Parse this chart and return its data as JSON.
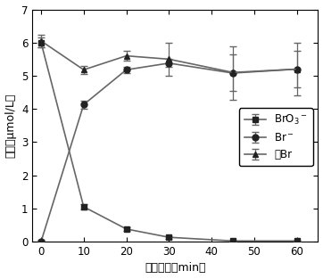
{
  "x": [
    0,
    10,
    20,
    30,
    45,
    60
  ],
  "BrO3_y": [
    6.0,
    1.05,
    0.38,
    0.13,
    0.02,
    0.02
  ],
  "BrO3_yerr": [
    0.15,
    0.08,
    0.06,
    0.04,
    0.02,
    0.02
  ],
  "Br_y": [
    0.0,
    4.13,
    5.18,
    5.38,
    5.08,
    5.2
  ],
  "Br_yerr": [
    0.05,
    0.12,
    0.1,
    0.12,
    0.8,
    0.8
  ],
  "TotalBr_y": [
    6.05,
    5.18,
    5.6,
    5.5,
    5.1,
    5.2
  ],
  "TotalBr_yerr": [
    0.18,
    0.12,
    0.15,
    0.5,
    0.55,
    0.55
  ],
  "xlabel": "反应时间（min）",
  "ylabel": "浓度（μmol/L）",
  "xlim": [
    -2,
    65
  ],
  "ylim": [
    0,
    7
  ],
  "yticks": [
    0,
    1,
    2,
    3,
    4,
    5,
    6,
    7
  ],
  "xticks": [
    0,
    10,
    20,
    30,
    40,
    50,
    60
  ],
  "legend_BrO3": "BrO$_3$$^-$",
  "legend_Br": "Br$^-$",
  "legend_TotalBr": "总Br",
  "line_color": "#666666",
  "marker_color": "#222222"
}
